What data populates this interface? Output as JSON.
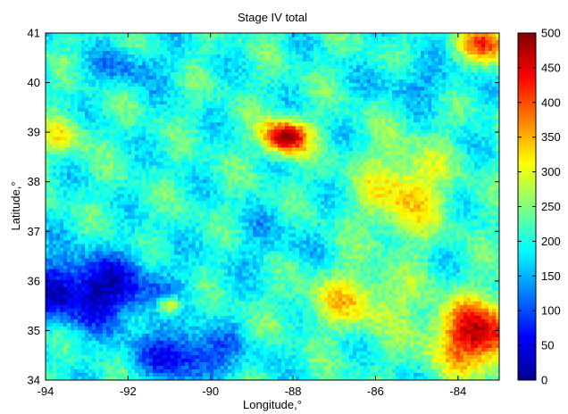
{
  "chart_data": {
    "type": "heatmap",
    "title": "Stage IV total",
    "xlabel": "Longitude,°",
    "ylabel": "Latitude,°",
    "xlim": [
      -94,
      -83
    ],
    "ylim": [
      34,
      41
    ],
    "xticks": [
      -94,
      -92,
      -90,
      -88,
      -86,
      -84
    ],
    "yticks": [
      34,
      35,
      36,
      37,
      38,
      39,
      40,
      41
    ],
    "colorbar": {
      "colormap": "jet",
      "clim": [
        0,
        500
      ],
      "ticks": [
        0,
        50,
        100,
        150,
        200,
        250,
        300,
        350,
        400,
        450,
        500
      ]
    },
    "grid": false,
    "field_description": "Gridded Stage IV total precipitation over the region; values mostly 150-250, highs of 400-500 near (-88, 38.9) and in the southeast (-84 to -83, 34.5-35.5), lows of 0-100 in the southwest (-94 to -90, 34-36)."
  }
}
